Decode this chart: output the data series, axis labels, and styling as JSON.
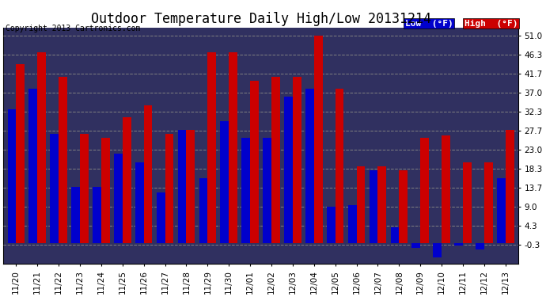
{
  "title": "Outdoor Temperature Daily High/Low 20131214",
  "copyright": "Copyright 2013 Cartronics.com",
  "legend_low": "Low  (°F)",
  "legend_high": "High  (°F)",
  "categories": [
    "11/20",
    "11/21",
    "11/22",
    "11/23",
    "11/24",
    "11/25",
    "11/26",
    "11/27",
    "11/28",
    "11/29",
    "11/30",
    "12/01",
    "12/02",
    "12/03",
    "12/04",
    "12/05",
    "12/06",
    "12/07",
    "12/08",
    "12/09",
    "12/10",
    "12/11",
    "12/12",
    "12/13"
  ],
  "low_values": [
    33.0,
    38.0,
    27.0,
    14.0,
    14.0,
    22.0,
    20.0,
    12.5,
    28.0,
    16.0,
    30.0,
    26.0,
    26.0,
    36.0,
    38.0,
    9.0,
    9.5,
    18.0,
    4.0,
    -1.0,
    -3.5,
    -0.5,
    -1.5,
    16.0
  ],
  "high_values": [
    44.0,
    47.0,
    41.0,
    27.0,
    26.0,
    31.0,
    34.0,
    27.0,
    28.0,
    47.0,
    47.0,
    40.0,
    41.0,
    41.0,
    51.0,
    38.0,
    19.0,
    19.0,
    18.0,
    26.0,
    26.5,
    20.0,
    20.0,
    28.0
  ],
  "ylim_min": -5.0,
  "ylim_max": 53.0,
  "ytick_vals": [
    -0.3,
    4.3,
    9.0,
    13.7,
    18.3,
    23.0,
    27.7,
    32.3,
    37.0,
    41.7,
    46.3,
    51.0
  ],
  "ytick_labels": [
    "-0.3",
    "4.3",
    "9.0",
    "13.7",
    "18.3",
    "23.0",
    "27.7",
    "32.3",
    "37.0",
    "41.7",
    "46.3",
    "51.0"
  ],
  "low_color": "#0000cc",
  "high_color": "#cc0000",
  "bg_color": "#ffffff",
  "plot_bg_color": "#303060",
  "grid_color": "#808080",
  "title_fontsize": 12,
  "tick_fontsize": 7.5,
  "copyright_fontsize": 7,
  "bar_width": 0.4
}
